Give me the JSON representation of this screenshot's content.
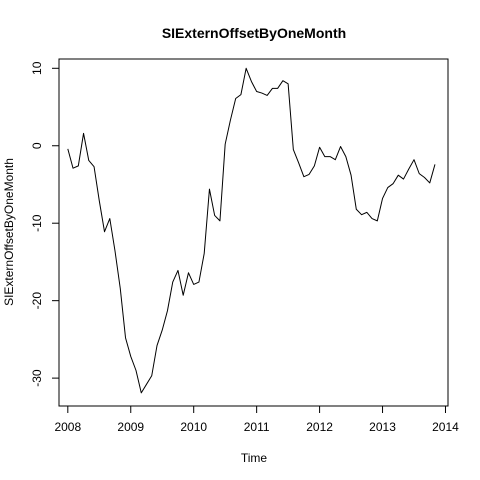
{
  "chart_data": {
    "type": "line",
    "title": "SIExternOffsetByOneMonth",
    "xlabel": "Time",
    "ylabel": "SIExternOffsetByOneMonth",
    "xlim": [
      2007.86,
      2014.04
    ],
    "ylim": [
      -33.6,
      11.2
    ],
    "x_ticks": [
      2008,
      2009,
      2010,
      2011,
      2012,
      2013,
      2014
    ],
    "x_tick_labels": [
      "2008",
      "2009",
      "2010",
      "2011",
      "2012",
      "2013",
      "2014"
    ],
    "y_ticks": [
      -30,
      -20,
      -10,
      0,
      10
    ],
    "y_tick_labels": [
      "-30",
      "-20",
      "-10",
      "0",
      "10"
    ],
    "grid": false,
    "series": [
      {
        "x": [
          2008.0,
          2008.083,
          2008.167,
          2008.25,
          2008.333,
          2008.417,
          2008.5,
          2008.583,
          2008.667,
          2008.75,
          2008.833,
          2008.917,
          2009.0,
          2009.083,
          2009.167,
          2009.25,
          2009.333,
          2009.417,
          2009.5,
          2009.583,
          2009.667,
          2009.75,
          2009.833,
          2009.917,
          2010.0,
          2010.083,
          2010.167,
          2010.25,
          2010.333,
          2010.417,
          2010.5,
          2010.583,
          2010.667,
          2010.75,
          2010.833,
          2010.917,
          2011.0,
          2011.083,
          2011.167,
          2011.25,
          2011.333,
          2011.417,
          2011.5,
          2011.583,
          2011.667,
          2011.75,
          2011.833,
          2011.917,
          2012.0,
          2012.083,
          2012.167,
          2012.25,
          2012.333,
          2012.417,
          2012.5,
          2012.583,
          2012.667,
          2012.75,
          2012.833,
          2012.917,
          2013.0,
          2013.083,
          2013.167,
          2013.25,
          2013.333,
          2013.417,
          2013.5,
          2013.583,
          2013.667,
          2013.75,
          2013.833
        ],
        "values": [
          -0.4,
          -2.9,
          -2.6,
          1.6,
          -1.9,
          -2.7,
          -7.1,
          -11.1,
          -9.4,
          -13.6,
          -18.4,
          -24.8,
          -27.2,
          -29.0,
          -31.9,
          -30.8,
          -29.7,
          -25.8,
          -23.8,
          -21.3,
          -17.6,
          -16.1,
          -19.3,
          -16.4,
          -17.9,
          -17.6,
          -13.9,
          -5.6,
          -9.0,
          -9.7,
          0.2,
          3.3,
          6.1,
          6.6,
          10.0,
          8.3,
          7.0,
          6.8,
          6.5,
          7.4,
          7.4,
          8.4,
          8.0,
          -0.5,
          -2.2,
          -4.0,
          -3.7,
          -2.6,
          -0.2,
          -1.4,
          -1.4,
          -1.8,
          -0.1,
          -1.4,
          -3.8,
          -8.2,
          -8.9,
          -8.6,
          -9.4,
          -9.7,
          -6.8,
          -5.4,
          -4.9,
          -3.8,
          -4.3,
          -3.0,
          -1.8,
          -3.6,
          -4.1,
          -4.8,
          -2.4
        ]
      }
    ]
  }
}
